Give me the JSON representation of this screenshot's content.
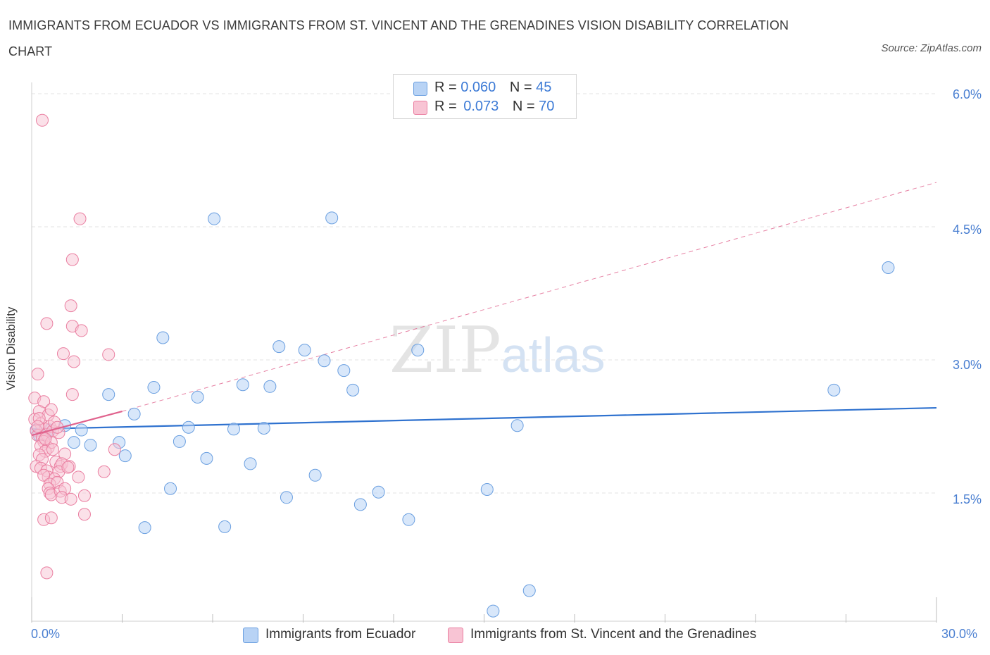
{
  "title": "IMMIGRANTS FROM ECUADOR VS IMMIGRANTS FROM ST. VINCENT AND THE GRENADINES VISION DISABILITY CORRELATION CHART",
  "source": "Source: ZipAtlas.com",
  "watermark": {
    "zip": "ZIP",
    "atlas": "atlas"
  },
  "legend": {
    "r_label": "R =",
    "n_label": "N =",
    "ecuador": {
      "r": "0.060",
      "n": "45"
    },
    "stvincent": {
      "r": "0.073",
      "n": "70"
    }
  },
  "bottom_legend": {
    "ecuador": "Immigrants from Ecuador",
    "stvincent": "Immigrants from St. Vincent and the Grenadines"
  },
  "colors": {
    "ecuador_fill": "#b8d3f5",
    "ecuador_stroke": "#6a9fe0",
    "ecuador_line": "#2f72cf",
    "stvincent_fill": "#f8c4d4",
    "stvincent_stroke": "#ea7fa1",
    "stvincent_line": "#e0628d",
    "grid": "#e3e3e3",
    "axis_text": "#4a7fd1"
  },
  "chart_data": {
    "type": "scatter",
    "title": "IMMIGRANTS FROM ECUADOR VS IMMIGRANTS FROM ST. VINCENT AND THE GRENADINES VISION DISABILITY CORRELATION CHART",
    "xlabel": "",
    "ylabel": "Vision Disability",
    "xlim": [
      0,
      30
    ],
    "ylim": [
      0,
      6.2
    ],
    "x_tick_labels": [
      "0.0%",
      "30.0%"
    ],
    "y_ticks": [
      1.5,
      3.0,
      4.5,
      6.0
    ],
    "y_tick_labels": [
      "1.5%",
      "3.0%",
      "4.5%",
      "6.0%"
    ],
    "series": [
      {
        "name": "Immigrants from Ecuador",
        "points": [
          [
            0.15,
            2.21
          ],
          [
            0.25,
            2.15
          ],
          [
            0.45,
            2.16
          ],
          [
            1.1,
            2.26
          ],
          [
            1.4,
            2.07
          ],
          [
            1.65,
            2.21
          ],
          [
            1.95,
            2.04
          ],
          [
            2.55,
            2.61
          ],
          [
            2.9,
            2.07
          ],
          [
            3.1,
            1.92
          ],
          [
            3.4,
            2.39
          ],
          [
            3.75,
            1.11
          ],
          [
            4.05,
            2.69
          ],
          [
            4.35,
            3.25
          ],
          [
            4.6,
            1.55
          ],
          [
            4.9,
            2.08
          ],
          [
            5.2,
            2.24
          ],
          [
            5.5,
            2.58
          ],
          [
            5.8,
            1.89
          ],
          [
            6.05,
            4.59
          ],
          [
            6.4,
            1.12
          ],
          [
            6.7,
            2.22
          ],
          [
            7.0,
            2.72
          ],
          [
            7.25,
            1.83
          ],
          [
            7.7,
            2.23
          ],
          [
            7.9,
            2.7
          ],
          [
            8.2,
            3.15
          ],
          [
            8.45,
            1.45
          ],
          [
            9.05,
            3.11
          ],
          [
            9.4,
            1.7
          ],
          [
            9.7,
            2.99
          ],
          [
            9.95,
            4.6
          ],
          [
            10.35,
            2.88
          ],
          [
            10.65,
            2.66
          ],
          [
            10.9,
            1.37
          ],
          [
            11.5,
            1.51
          ],
          [
            12.5,
            1.2
          ],
          [
            12.8,
            3.11
          ],
          [
            15.1,
            1.54
          ],
          [
            15.3,
            0.17
          ],
          [
            16.1,
            2.26
          ],
          [
            16.5,
            0.4
          ],
          [
            26.6,
            2.66
          ],
          [
            28.4,
            4.04
          ],
          [
            0.6,
            2.21
          ]
        ],
        "trend": {
          "x": [
            0,
            30
          ],
          "y": [
            2.22,
            2.46
          ],
          "style": "solid"
        }
      },
      {
        "name": "Immigrants from St. Vincent and the Grenadines",
        "points": [
          [
            0.35,
            5.7
          ],
          [
            1.6,
            4.59
          ],
          [
            1.35,
            4.13
          ],
          [
            1.3,
            3.61
          ],
          [
            0.5,
            3.41
          ],
          [
            1.35,
            3.38
          ],
          [
            1.65,
            3.33
          ],
          [
            1.05,
            3.07
          ],
          [
            2.55,
            3.06
          ],
          [
            1.4,
            2.98
          ],
          [
            0.2,
            2.84
          ],
          [
            0.1,
            2.57
          ],
          [
            0.4,
            2.53
          ],
          [
            1.35,
            2.61
          ],
          [
            0.25,
            2.42
          ],
          [
            0.55,
            2.38
          ],
          [
            0.65,
            2.44
          ],
          [
            0.1,
            2.33
          ],
          [
            0.3,
            2.28
          ],
          [
            0.45,
            2.22
          ],
          [
            0.15,
            2.2
          ],
          [
            0.2,
            2.15
          ],
          [
            0.35,
            2.12
          ],
          [
            0.5,
            2.16
          ],
          [
            0.6,
            2.25
          ],
          [
            0.7,
            2.2
          ],
          [
            0.75,
            2.3
          ],
          [
            0.9,
            2.18
          ],
          [
            0.4,
            2.08
          ],
          [
            0.3,
            2.03
          ],
          [
            0.55,
            2.01
          ],
          [
            0.65,
            2.07
          ],
          [
            0.45,
            1.97
          ],
          [
            0.25,
            1.93
          ],
          [
            0.35,
            1.88
          ],
          [
            0.7,
            1.99
          ],
          [
            1.1,
            1.94
          ],
          [
            0.8,
            1.85
          ],
          [
            0.15,
            1.8
          ],
          [
            0.3,
            1.78
          ],
          [
            0.5,
            1.75
          ],
          [
            0.95,
            1.8
          ],
          [
            1.0,
            1.83
          ],
          [
            1.25,
            1.8
          ],
          [
            0.9,
            1.74
          ],
          [
            0.55,
            1.68
          ],
          [
            0.75,
            1.66
          ],
          [
            0.4,
            1.7
          ],
          [
            0.6,
            1.6
          ],
          [
            0.85,
            1.62
          ],
          [
            1.55,
            1.68
          ],
          [
            2.4,
            1.74
          ],
          [
            2.75,
            1.99
          ],
          [
            0.55,
            1.55
          ],
          [
            0.6,
            1.5
          ],
          [
            0.65,
            1.48
          ],
          [
            0.95,
            1.52
          ],
          [
            1.1,
            1.55
          ],
          [
            1.0,
            1.45
          ],
          [
            1.3,
            1.43
          ],
          [
            1.75,
            1.47
          ],
          [
            0.4,
            1.2
          ],
          [
            0.65,
            1.22
          ],
          [
            1.75,
            1.26
          ],
          [
            0.5,
            0.6
          ],
          [
            0.85,
            2.24
          ],
          [
            0.25,
            2.34
          ],
          [
            0.45,
            2.11
          ],
          [
            1.2,
            1.79
          ],
          [
            0.2,
            2.25
          ]
        ],
        "trend_solid": {
          "x": [
            0,
            3.0
          ],
          "y": [
            2.15,
            2.42
          ],
          "style": "solid"
        },
        "trend_dashed": {
          "x": [
            3.0,
            30
          ],
          "y": [
            2.42,
            5.0
          ],
          "style": "dashed"
        }
      }
    ]
  }
}
